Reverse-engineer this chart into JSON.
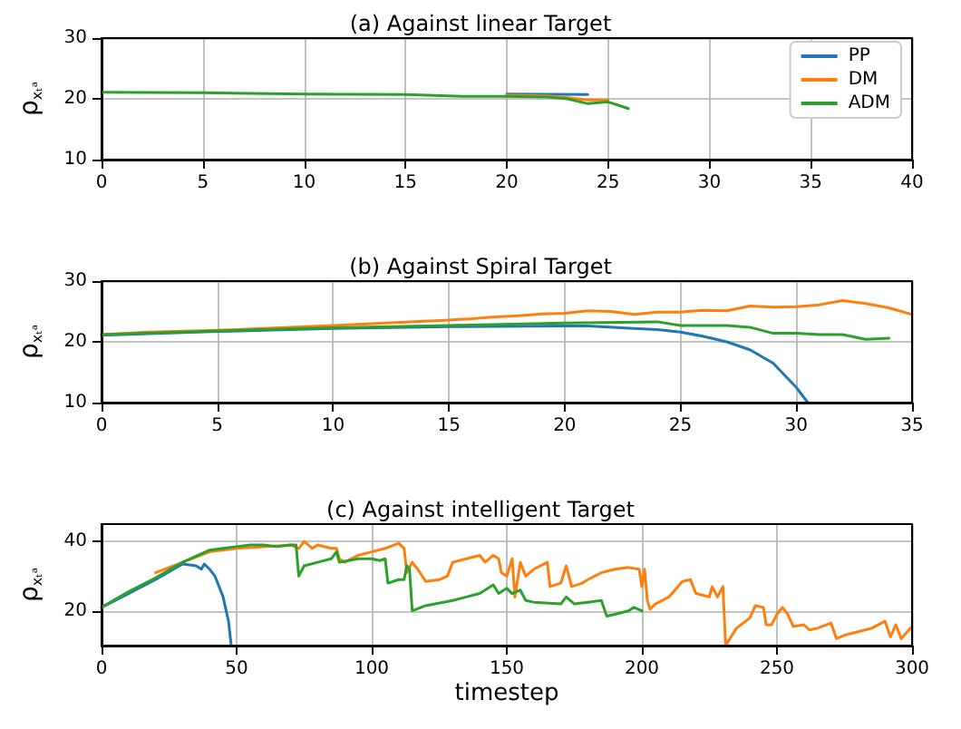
{
  "chart_data": [
    {
      "type": "line",
      "title": "(a) Against linear Target",
      "ylabel": "ρ$_{xₜᵃ}$",
      "xlim": [
        0,
        40
      ],
      "xticks": [
        0,
        5,
        10,
        15,
        20,
        25,
        30,
        35,
        40
      ],
      "ylim": [
        10,
        30
      ],
      "yticks": [
        10,
        20,
        30
      ],
      "grid": true,
      "legend": "top right",
      "line_style": "solid",
      "marker": "none",
      "series": [
        {
          "name": "PP",
          "color": "#1f77b4",
          "x": [
            20,
            24
          ],
          "values": [
            20.8,
            20.7
          ]
        },
        {
          "name": "DM",
          "color": "#ff7f0e",
          "x": [
            20,
            22,
            23,
            24,
            25
          ],
          "values": [
            20.6,
            20.5,
            20.2,
            19.8,
            19.8
          ]
        },
        {
          "name": "ADM",
          "color": "#2ca02c",
          "x": [
            0,
            5,
            10,
            15,
            18,
            20,
            22,
            23,
            24,
            25,
            26
          ],
          "values": [
            21.1,
            21.0,
            20.8,
            20.7,
            20.4,
            20.4,
            20.3,
            20.0,
            19.2,
            19.5,
            18.4
          ]
        }
      ]
    },
    {
      "type": "line",
      "title": "(b) Against Spiral Target",
      "ylabel": "ρ$_{xₜᵃ}$",
      "xlim": [
        0,
        35
      ],
      "xticks": [
        0,
        5,
        10,
        15,
        20,
        25,
        30,
        35
      ],
      "ylim": [
        10,
        30
      ],
      "yticks": [
        10,
        20,
        30
      ],
      "grid": true,
      "line_style": "solid",
      "marker": "none",
      "series": [
        {
          "color": "#1f77b4",
          "x": [
            0,
            5,
            10,
            15,
            20,
            21,
            23,
            24,
            25,
            26,
            27,
            28,
            29,
            30,
            30.5
          ],
          "values": [
            21.1,
            21.7,
            22.2,
            22.5,
            22.6,
            22.6,
            22.2,
            22.0,
            21.6,
            20.9,
            20.0,
            18.7,
            16.5,
            12.5,
            10
          ]
        },
        {
          "color": "#ff7f0e",
          "x": [
            0,
            2,
            5,
            10,
            15,
            16,
            17,
            18,
            19,
            20,
            21,
            22,
            23,
            24,
            25,
            26,
            27,
            28,
            29,
            30,
            31,
            32,
            33,
            34,
            35
          ],
          "values": [
            21.2,
            21.6,
            21.9,
            22.7,
            23.6,
            23.8,
            24.1,
            24.3,
            24.6,
            24.7,
            25.1,
            25.0,
            24.5,
            24.9,
            24.9,
            25.2,
            25.1,
            25.9,
            25.7,
            25.8,
            26.1,
            26.8,
            26.3,
            25.6,
            24.5
          ]
        },
        {
          "color": "#2ca02c",
          "x": [
            0,
            5,
            10,
            15,
            20,
            24,
            25,
            27,
            28,
            29,
            30,
            31,
            32,
            33,
            34
          ],
          "values": [
            21.2,
            21.8,
            22.3,
            22.7,
            23.1,
            23.3,
            22.7,
            22.7,
            22.4,
            21.4,
            21.4,
            21.2,
            21.2,
            20.4,
            20.6
          ]
        }
      ]
    },
    {
      "type": "line",
      "title": "(c) Against intelligent Target",
      "xlabel": "timestep",
      "ylabel": "ρ$_{xₜᵃ}$",
      "xlim": [
        0,
        300
      ],
      "xticks": [
        0,
        50,
        100,
        150,
        200,
        250,
        300
      ],
      "ylim": [
        10,
        45
      ],
      "yticks": [
        20,
        40
      ],
      "grid": true,
      "line_style": "solid",
      "marker": "none",
      "series": [
        {
          "color": "#1f77b4",
          "x": [
            0,
            10,
            20,
            30,
            35,
            37,
            38,
            40,
            42,
            45,
            47,
            48
          ],
          "values": [
            21,
            25,
            29,
            33.5,
            33,
            32,
            33.5,
            32,
            30,
            24,
            17,
            10
          ]
        },
        {
          "color": "#ff7f0e",
          "x": [
            20,
            30,
            40,
            50,
            60,
            70,
            73,
            75,
            78,
            80,
            85,
            87,
            88,
            90,
            95,
            100,
            105,
            110,
            112,
            113,
            115,
            117,
            120,
            125,
            128,
            130,
            135,
            140,
            142,
            145,
            147,
            148,
            150,
            152,
            153,
            155,
            157,
            160,
            165,
            166,
            170,
            172,
            174,
            178,
            180,
            185,
            190,
            195,
            199,
            200,
            201,
            202,
            203,
            205,
            210,
            215,
            218,
            220,
            225,
            226,
            228,
            230,
            231,
            235,
            240,
            242,
            245,
            246,
            248,
            250,
            252,
            254,
            256,
            260,
            262,
            265,
            270,
            272,
            275,
            280,
            285,
            290,
            292,
            294,
            296,
            300
          ],
          "values": [
            31,
            34,
            37,
            38,
            38.5,
            39,
            38,
            40,
            38,
            39,
            38,
            38,
            35,
            34,
            36,
            37,
            38,
            39.5,
            38,
            31,
            34,
            32,
            28.5,
            29,
            30,
            34,
            35,
            36,
            34,
            36,
            35,
            31,
            30,
            35,
            24,
            34,
            30,
            32,
            34,
            27,
            28,
            33,
            27,
            28,
            29,
            31,
            32,
            32.5,
            32,
            27,
            32,
            23,
            20.5,
            22,
            24,
            28.5,
            29,
            25,
            24,
            27,
            24,
            27,
            10,
            15,
            18,
            21.5,
            21,
            16,
            16,
            19,
            21,
            19,
            15.5,
            16,
            14.5,
            15,
            16.5,
            12,
            13,
            14,
            15,
            17,
            12.5,
            16,
            12,
            15.5
          ]
        },
        {
          "color": "#2ca02c",
          "x": [
            0,
            10,
            20,
            30,
            40,
            45,
            50,
            55,
            60,
            65,
            70,
            72,
            73,
            75,
            80,
            85,
            87,
            88,
            95,
            100,
            103,
            105,
            106,
            110,
            112,
            113,
            114,
            115,
            120,
            130,
            135,
            140,
            145,
            147,
            150,
            152,
            155,
            157,
            160,
            170,
            172,
            175,
            180,
            185,
            187,
            190,
            195,
            197,
            200
          ],
          "values": [
            21,
            25.5,
            29.5,
            34,
            37.5,
            38,
            38.5,
            39,
            39,
            38.5,
            39,
            39,
            30,
            33,
            34,
            35,
            37,
            34,
            35,
            35,
            34.5,
            35,
            28,
            29,
            29,
            33,
            32,
            20,
            21.5,
            23,
            24,
            25,
            27.5,
            25,
            26.5,
            25,
            26,
            23,
            22.5,
            22,
            24,
            22,
            22.5,
            23,
            18.5,
            19,
            20,
            21,
            20
          ]
        }
      ]
    }
  ]
}
